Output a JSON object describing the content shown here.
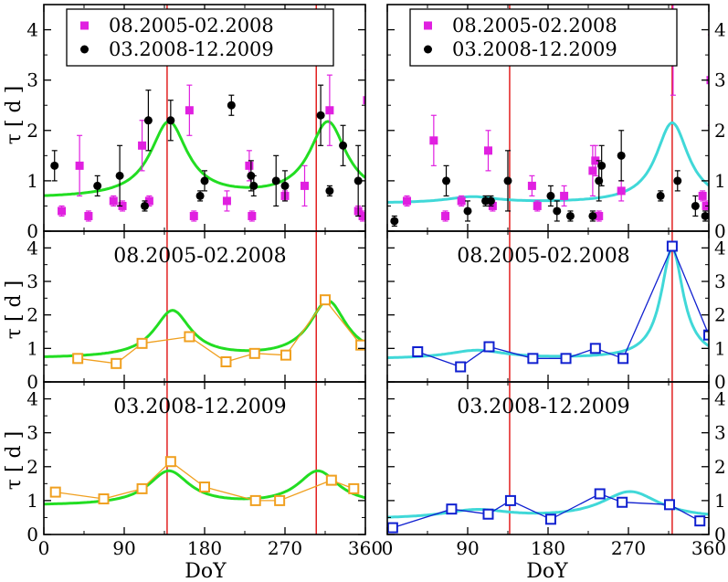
{
  "chart_data": {
    "type": "scatter",
    "x_range": [
      0,
      360
    ],
    "x_ticks": [
      0,
      90,
      180,
      270,
      360
    ],
    "xlabel": "DoY",
    "ylabel": "τ [ d ]",
    "colors": {
      "magenta": "#e020e0",
      "black": "#000000",
      "green": "#22dd22",
      "cyan": "#40d8d8",
      "orange": "#f0a020",
      "blue": "#1020d0",
      "red": "#e01010"
    },
    "panels": [
      {
        "id": "left-top",
        "ylim": [
          0,
          4.5
        ],
        "yticks": [
          0,
          1,
          2,
          3,
          4
        ],
        "legend": {
          "position": "top",
          "entries": [
            "08.2005-02.2008",
            "03.2008-12.2009"
          ]
        },
        "marker_series": [
          {
            "name": "08.2005-02.2008",
            "color": "magenta",
            "marker": "square",
            "points": [
              {
                "x": 20,
                "y": 0.4,
                "err": 0.1
              },
              {
                "x": 40,
                "y": 1.3,
                "err": 0.6
              },
              {
                "x": 50,
                "y": 0.3,
                "err": 0.1
              },
              {
                "x": 78,
                "y": 0.6,
                "err": 0.1
              },
              {
                "x": 88,
                "y": 0.5,
                "err": 0.1
              },
              {
                "x": 110,
                "y": 1.7,
                "err": 0.5
              },
              {
                "x": 118,
                "y": 0.6,
                "err": 0.1
              },
              {
                "x": 163,
                "y": 2.4,
                "err": 0.5
              },
              {
                "x": 168,
                "y": 0.3,
                "err": 0.1
              },
              {
                "x": 205,
                "y": 0.6,
                "err": 0.2
              },
              {
                "x": 230,
                "y": 1.3,
                "err": 0.3
              },
              {
                "x": 233,
                "y": 0.3,
                "err": 0.1
              },
              {
                "x": 270,
                "y": 0.7,
                "err": 0.1
              },
              {
                "x": 292,
                "y": 0.9,
                "err": 0.4
              },
              {
                "x": 320,
                "y": 2.4,
                "err": 0.7
              },
              {
                "x": 352,
                "y": 0.4,
                "err": 0.1
              },
              {
                "x": 357,
                "y": 0.3,
                "err": 0.1
              },
              {
                "x": 362,
                "y": 2.6,
                "err": 0.6
              }
            ]
          },
          {
            "name": "03.2008-12.2009",
            "color": "black",
            "marker": "circle",
            "points": [
              {
                "x": 12,
                "y": 1.3,
                "err": 0.3
              },
              {
                "x": 60,
                "y": 0.9,
                "err": 0.2
              },
              {
                "x": 85,
                "y": 1.1,
                "err": 0.6
              },
              {
                "x": 113,
                "y": 0.5,
                "err": 0.1
              },
              {
                "x": 117,
                "y": 2.2,
                "err": 0.6
              },
              {
                "x": 142,
                "y": 2.2,
                "err": 0.4
              },
              {
                "x": 175,
                "y": 0.7,
                "err": 0.1
              },
              {
                "x": 180,
                "y": 1.0,
                "err": 0.2
              },
              {
                "x": 210,
                "y": 2.5,
                "err": 0.2
              },
              {
                "x": 232,
                "y": 1.1,
                "err": 0.3
              },
              {
                "x": 235,
                "y": 0.9,
                "err": 0.2
              },
              {
                "x": 260,
                "y": 1.0,
                "err": 0.5
              },
              {
                "x": 270,
                "y": 0.9,
                "err": 0.3
              },
              {
                "x": 310,
                "y": 2.3,
                "err": 0.6
              },
              {
                "x": 320,
                "y": 0.8,
                "err": 0.1
              },
              {
                "x": 335,
                "y": 1.7,
                "err": 0.4
              },
              {
                "x": 352,
                "y": 1.0,
                "err": 0.7
              }
            ]
          }
        ],
        "model": {
          "color": "green",
          "baseline": 0.65,
          "peaks": [
            {
              "center": 140,
              "amp": 1.5,
              "width": 25
            },
            {
              "center": 318,
              "amp": 1.5,
              "width": 25
            }
          ]
        },
        "vlines": [
          138,
          305
        ]
      },
      {
        "id": "left-middle",
        "ylim": [
          0,
          4.5
        ],
        "yticks": [
          0,
          1,
          2,
          3,
          4
        ],
        "label": "08.2005-02.2008",
        "line_series": {
          "color": "orange",
          "marker": "open-square",
          "x": [
            38,
            81,
            110,
            163,
            204,
            236,
            271,
            315,
            355
          ],
          "y": [
            0.7,
            0.55,
            1.15,
            1.35,
            0.6,
            0.85,
            0.8,
            2.45,
            1.1
          ]
        },
        "model": {
          "color": "green",
          "baseline": 0.7,
          "peaks": [
            {
              "center": 144,
              "amp": 1.4,
              "width": 25
            },
            {
              "center": 318,
              "amp": 1.7,
              "width": 25
            }
          ]
        },
        "vlines": [
          138,
          305
        ]
      },
      {
        "id": "left-bottom",
        "ylim": [
          0,
          4.5
        ],
        "yticks": [
          0,
          1,
          2,
          3,
          4
        ],
        "label": "03.2008-12.2009",
        "line_series": {
          "color": "orange",
          "marker": "open-square",
          "x": [
            13,
            67,
            110,
            142,
            180,
            237,
            264,
            322,
            347
          ],
          "y": [
            1.25,
            1.05,
            1.35,
            2.15,
            1.4,
            1.0,
            1.0,
            1.6,
            1.35
          ]
        },
        "model": {
          "color": "green",
          "baseline": 0.85,
          "peaks": [
            {
              "center": 140,
              "amp": 1.0,
              "width": 28
            },
            {
              "center": 307,
              "amp": 1.0,
              "width": 28
            }
          ]
        },
        "vlines": [
          138,
          305
        ]
      },
      {
        "id": "right-top",
        "ylim": [
          0,
          4.5
        ],
        "yticks": [
          0,
          1,
          2,
          3,
          4
        ],
        "legend": {
          "position": "top",
          "entries": [
            "08.2005-02.2008",
            "03.2008-12.2009"
          ]
        },
        "marker_series": [
          {
            "name": "08.2005-02.2008",
            "color": "magenta",
            "marker": "square",
            "points": [
              {
                "x": 22,
                "y": 0.6,
                "err": 0.1
              },
              {
                "x": 52,
                "y": 1.8,
                "err": 0.5
              },
              {
                "x": 65,
                "y": 0.3,
                "err": 0.1
              },
              {
                "x": 83,
                "y": 0.6,
                "err": 0.1
              },
              {
                "x": 113,
                "y": 1.6,
                "err": 0.4
              },
              {
                "x": 118,
                "y": 0.5,
                "err": 0.1
              },
              {
                "x": 162,
                "y": 0.9,
                "err": 0.2
              },
              {
                "x": 168,
                "y": 0.5,
                "err": 0.1
              },
              {
                "x": 198,
                "y": 0.7,
                "err": 0.2
              },
              {
                "x": 230,
                "y": 1.2,
                "err": 0.5
              },
              {
                "x": 233,
                "y": 1.4,
                "err": 0.3
              },
              {
                "x": 237,
                "y": 0.3,
                "err": 0.1
              },
              {
                "x": 262,
                "y": 0.8,
                "err": 0.2
              },
              {
                "x": 320,
                "y": 4.0,
                "err": 1.3
              },
              {
                "x": 353,
                "y": 0.7,
                "err": 0.1
              },
              {
                "x": 357,
                "y": 0.5,
                "err": 0.1
              },
              {
                "x": 362,
                "y": 3.0,
                "err": 0.9
              }
            ]
          },
          {
            "name": "03.2008-12.2009",
            "color": "black",
            "marker": "circle",
            "points": [
              {
                "x": 8,
                "y": 0.2,
                "err": 0.1
              },
              {
                "x": 66,
                "y": 1.0,
                "err": 0.3
              },
              {
                "x": 90,
                "y": 0.4,
                "err": 0.2
              },
              {
                "x": 110,
                "y": 0.6,
                "err": 0.1
              },
              {
                "x": 116,
                "y": 0.6,
                "err": 0.1
              },
              {
                "x": 135,
                "y": 1.0,
                "err": 0.6
              },
              {
                "x": 183,
                "y": 0.7,
                "err": 0.2
              },
              {
                "x": 190,
                "y": 0.4,
                "err": 0.2
              },
              {
                "x": 205,
                "y": 0.3,
                "err": 0.1
              },
              {
                "x": 230,
                "y": 0.3,
                "err": 0.1
              },
              {
                "x": 237,
                "y": 1.0,
                "err": 0.4
              },
              {
                "x": 240,
                "y": 1.3,
                "err": 0.4
              },
              {
                "x": 262,
                "y": 1.5,
                "err": 0.5
              },
              {
                "x": 306,
                "y": 0.7,
                "err": 0.1
              },
              {
                "x": 325,
                "y": 1.0,
                "err": 0.2
              },
              {
                "x": 345,
                "y": 0.5,
                "err": 0.2
              },
              {
                "x": 356,
                "y": 0.3,
                "err": 0.1
              }
            ]
          }
        ],
        "model": {
          "color": "cyan",
          "baseline": 0.55,
          "peaks": [
            {
              "center": 95,
              "amp": 0.12,
              "width": 35
            },
            {
              "center": 319,
              "amp": 1.6,
              "width": 22
            }
          ]
        },
        "vlines": [
          137,
          319
        ]
      },
      {
        "id": "right-middle",
        "ylim": [
          0,
          4.5
        ],
        "yticks": [
          0,
          1,
          2,
          3,
          4
        ],
        "label": "08.2005-02.2008",
        "line_series": {
          "color": "blue",
          "marker": "open-square",
          "x": [
            34,
            82,
            114,
            163,
            200,
            233,
            264,
            319,
            360
          ],
          "y": [
            0.9,
            0.45,
            1.05,
            0.7,
            0.7,
            1.0,
            0.7,
            4.05,
            1.4
          ]
        },
        "model": {
          "color": "cyan",
          "baseline": 0.68,
          "peaks": [
            {
              "center": 100,
              "amp": 0.25,
              "width": 40
            },
            {
              "center": 319,
              "amp": 3.3,
              "width": 15
            }
          ]
        },
        "vlines": [
          137,
          319
        ]
      },
      {
        "id": "right-bottom",
        "ylim": [
          0,
          4.5
        ],
        "yticks": [
          0,
          1,
          2,
          3,
          4
        ],
        "label": "03.2008-12.2009",
        "line_series": {
          "color": "blue",
          "marker": "open-square",
          "x": [
            6,
            72,
            113,
            138,
            183,
            238,
            263,
            316,
            350
          ],
          "y": [
            0.2,
            0.75,
            0.6,
            1.0,
            0.45,
            1.2,
            0.95,
            0.88,
            0.4
          ]
        },
        "model": {
          "color": "cyan",
          "baseline": 0.45,
          "peaks": [
            {
              "center": 100,
              "amp": 0.25,
              "width": 45
            },
            {
              "center": 272,
              "amp": 0.8,
              "width": 40
            }
          ]
        },
        "vlines": [
          137,
          319
        ]
      }
    ]
  }
}
